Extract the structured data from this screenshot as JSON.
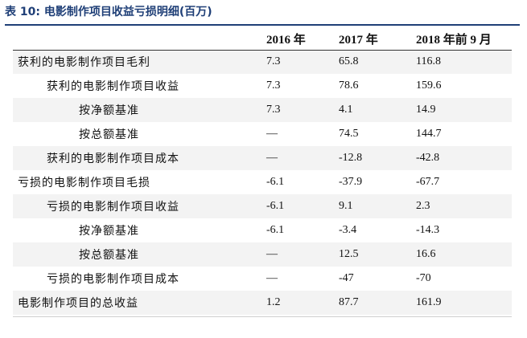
{
  "caption": "表 10: 电影制作项目收益亏损明细(百万)",
  "columns": [
    "",
    "2016 年",
    "2017 年",
    "2018 年前 9 月"
  ],
  "rows": [
    {
      "label": "获利的电影制作项目毛利",
      "indent": 0,
      "v2016": "7.3",
      "v2017": "65.8",
      "v2018": "116.8"
    },
    {
      "label": "获利的电影制作项目收益",
      "indent": 1,
      "v2016": "7.3",
      "v2017": "78.6",
      "v2018": "159.6"
    },
    {
      "label": "按净额基准",
      "indent": 2,
      "v2016": "7.3",
      "v2017": "4.1",
      "v2018": "14.9"
    },
    {
      "label": "按总额基准",
      "indent": 2,
      "v2016": "—",
      "v2017": "74.5",
      "v2018": "144.7"
    },
    {
      "label": "获利的电影制作项目成本",
      "indent": 1,
      "v2016": "—",
      "v2017": "-12.8",
      "v2018": "-42.8"
    },
    {
      "label": "亏损的电影制作项目毛损",
      "indent": 0,
      "v2016": "-6.1",
      "v2017": "-37.9",
      "v2018": "-67.7"
    },
    {
      "label": "亏损的电影制作项目收益",
      "indent": 1,
      "v2016": "-6.1",
      "v2017": "9.1",
      "v2018": "2.3"
    },
    {
      "label": "按净额基准",
      "indent": 2,
      "v2016": "-6.1",
      "v2017": "-3.4",
      "v2018": "-14.3"
    },
    {
      "label": "按总额基准",
      "indent": 2,
      "v2016": "—",
      "v2017": "12.5",
      "v2018": "16.6"
    },
    {
      "label": "亏损的电影制作项目成本",
      "indent": 1,
      "v2016": "—",
      "v2017": "-47",
      "v2018": "-70"
    },
    {
      "label": "电影制作项目的总收益",
      "indent": 0,
      "v2016": "1.2",
      "v2017": "87.7",
      "v2018": "161.9"
    }
  ],
  "colors": {
    "caption": "#1f3f77",
    "row_alt_bg": "#f3f3f3"
  }
}
